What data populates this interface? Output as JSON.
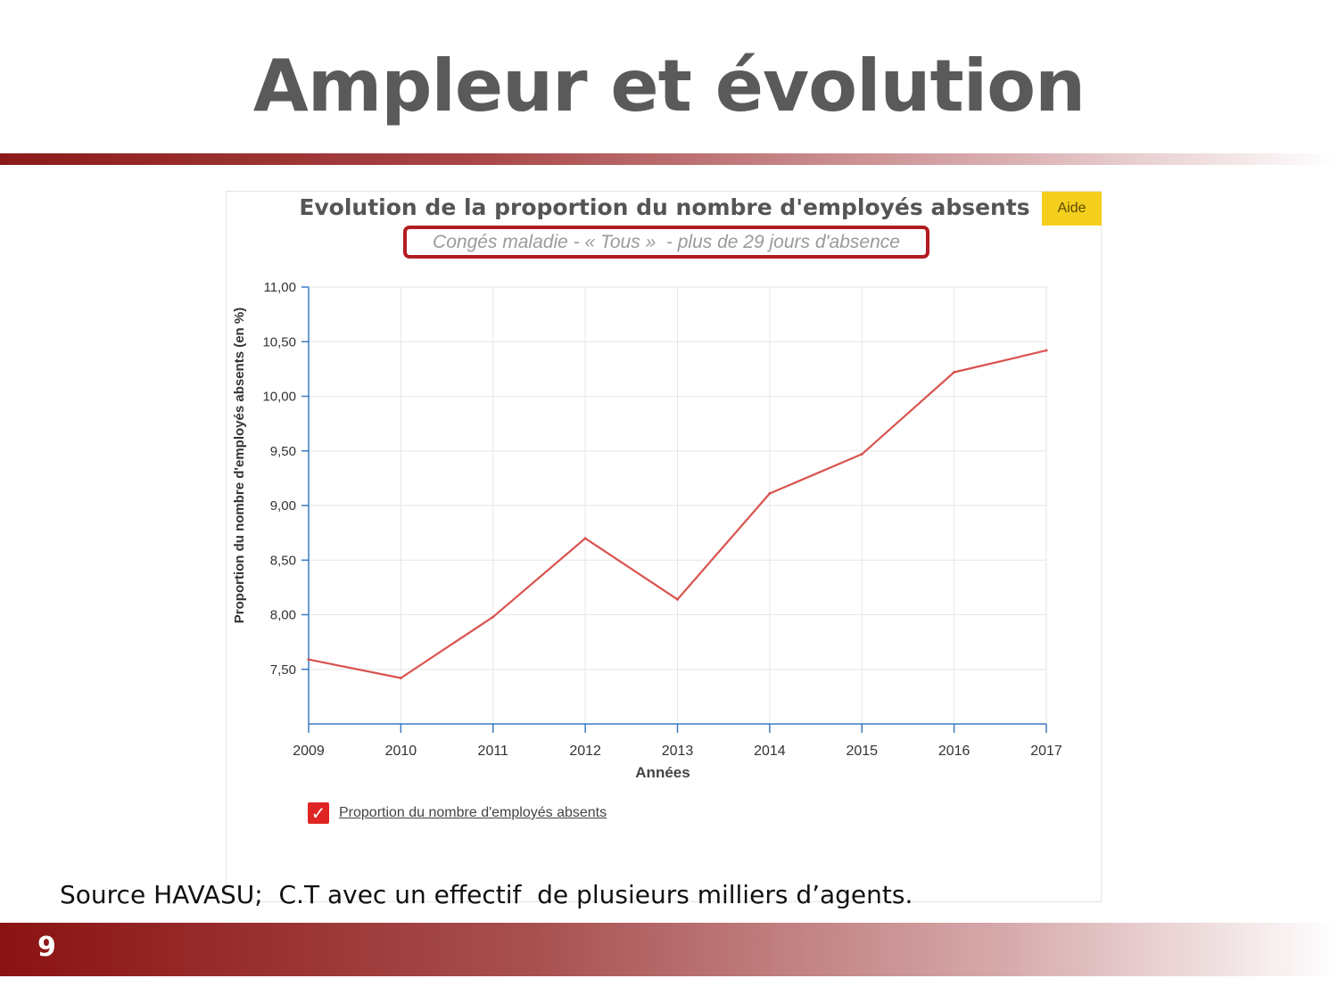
{
  "slide": {
    "title": "Ampleur et évolution",
    "source_note": "Source HAVASU;  C.T avec un effectif  de plusieurs milliers d’agents.",
    "page_number": "9"
  },
  "panel": {
    "help_label": "Aide"
  },
  "chart_data": {
    "type": "line",
    "title": "Evolution de la proportion du nombre d'employés absents",
    "subtitle": "Congés maladie - « Tous »  - plus de 29 jours d'absence",
    "xlabel": "Années",
    "ylabel": "Proportion du nombre d'employés absents  (en %)",
    "x": [
      "2009",
      "2010",
      "2011",
      "2012",
      "2013",
      "2014",
      "2015",
      "2016",
      "2017"
    ],
    "series": [
      {
        "name": "Proportion du nombre d'employés absents",
        "values": [
          7.59,
          7.42,
          7.98,
          8.7,
          8.14,
          9.11,
          9.47,
          10.22,
          10.42
        ],
        "color": "#d9534f"
      }
    ],
    "ylim": [
      7.0,
      11.0
    ],
    "yticks": [
      {
        "value": 7.5,
        "label": "7,50"
      },
      {
        "value": 8.0,
        "label": "8,00"
      },
      {
        "value": 8.5,
        "label": "8,50"
      },
      {
        "value": 9.0,
        "label": "9,00"
      },
      {
        "value": 9.5,
        "label": "9,50"
      },
      {
        "value": 10.0,
        "label": "10,00"
      },
      {
        "value": 10.5,
        "label": "10,50"
      },
      {
        "value": 11.0,
        "label": "11,00"
      }
    ],
    "grid": true,
    "legend_position": "bottom-left"
  },
  "colors": {
    "accent": "#8b1a1a",
    "line": "#d9534f",
    "highlight_border": "#b21c22",
    "help_button": "#f5cf1e"
  }
}
